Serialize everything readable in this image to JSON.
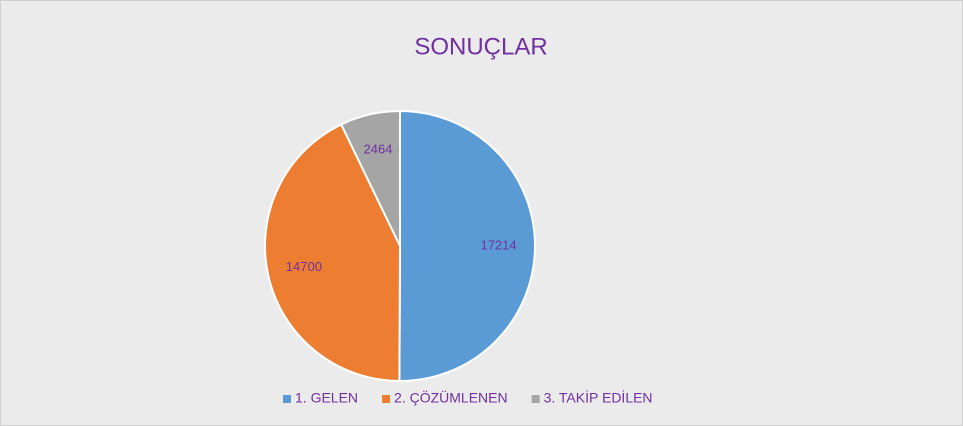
{
  "chart_data": {
    "type": "pie",
    "title": "SONUÇLAR",
    "categories": [
      "1. GELEN",
      "2. ÇÖZÜMLENEN",
      "3. TAKİP EDİLEN"
    ],
    "values": [
      17214,
      14700,
      2464
    ],
    "colors": [
      "#5b9bd5",
      "#ed7d31",
      "#a5a5a5"
    ],
    "legend": "bottom"
  }
}
